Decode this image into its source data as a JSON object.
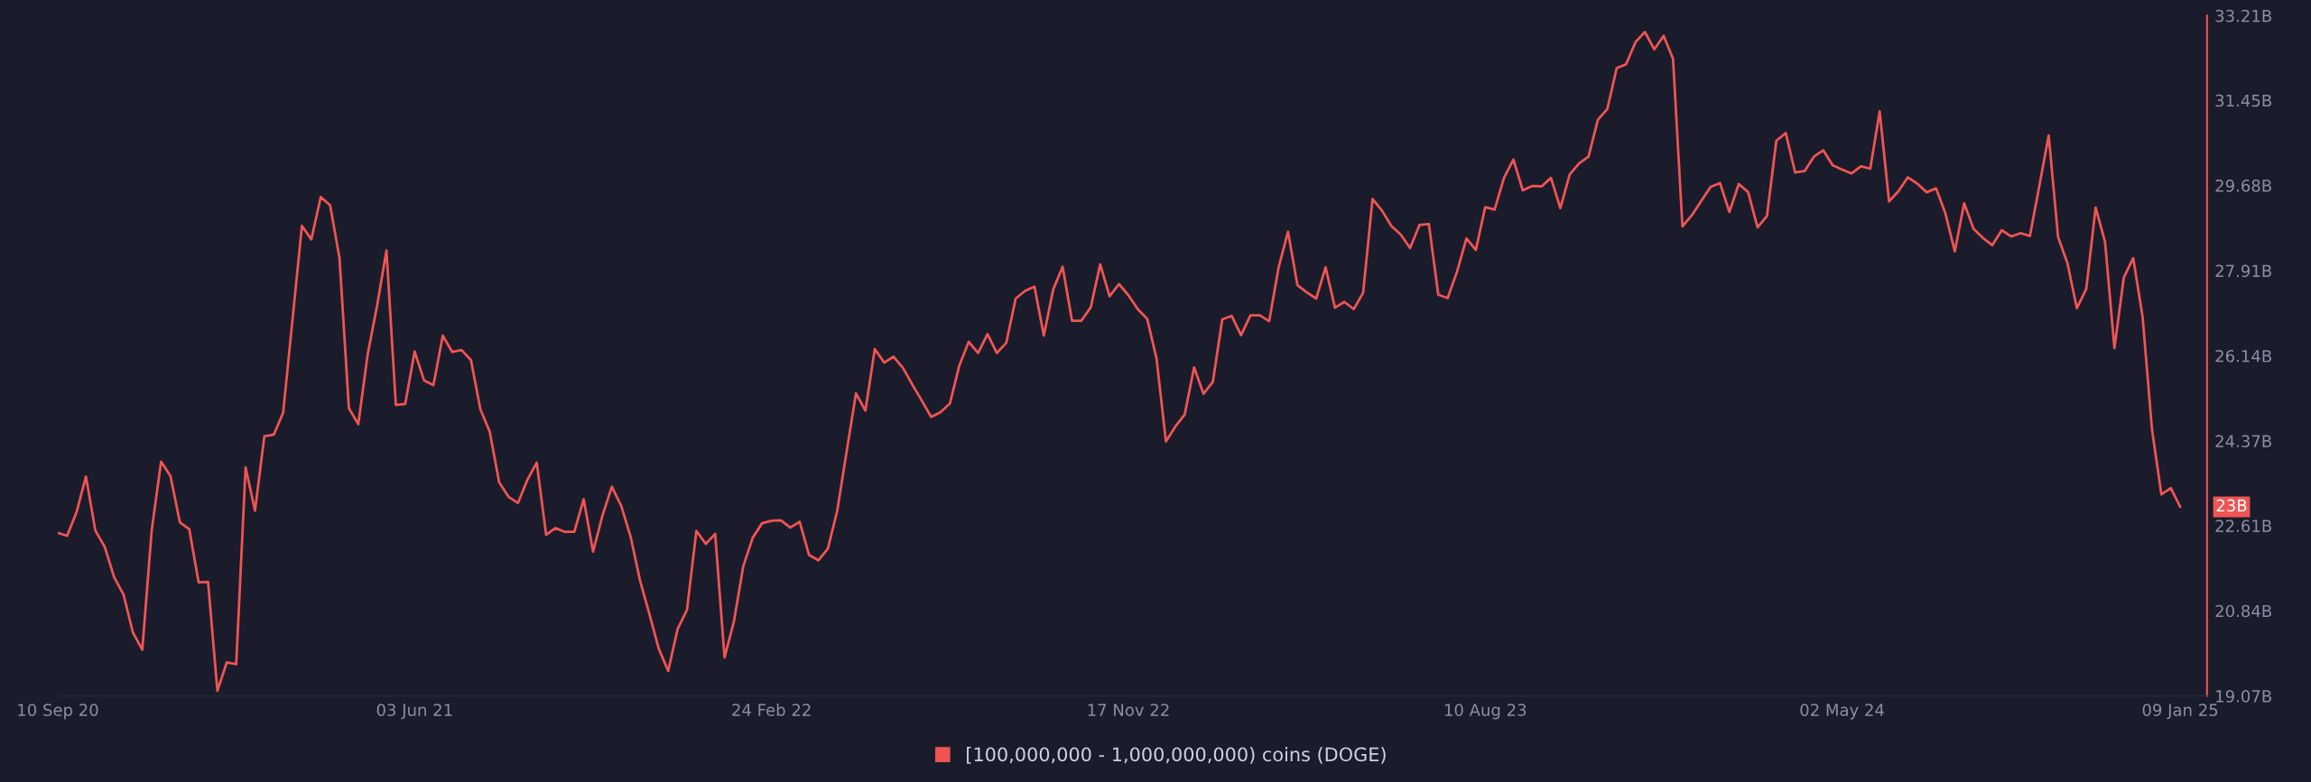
{
  "chart_data": {
    "type": "line",
    "x": [
      "2020-09-10",
      "2020-09-17",
      "2020-09-24",
      "2020-10-01",
      "2020-10-08",
      "2020-10-15",
      "2020-10-22",
      "2020-10-29",
      "2020-11-05",
      "2020-11-12",
      "2020-11-19",
      "2020-11-26",
      "2020-12-03",
      "2020-12-10",
      "2020-12-17",
      "2020-12-24",
      "2020-12-31",
      "2021-01-07",
      "2021-01-14",
      "2021-01-21",
      "2021-01-28",
      "2021-02-04",
      "2021-02-11",
      "2021-02-18",
      "2021-02-25",
      "2021-03-04",
      "2021-03-11",
      "2021-03-18",
      "2021-03-25",
      "2021-04-01",
      "2021-04-08",
      "2021-04-15",
      "2021-04-22",
      "2021-04-29",
      "2021-05-06",
      "2021-05-13",
      "2021-05-20",
      "2021-05-27",
      "2021-06-03",
      "2021-06-10",
      "2021-06-17",
      "2021-06-24",
      "2021-07-01",
      "2021-07-08",
      "2021-07-15",
      "2021-07-22",
      "2021-07-29",
      "2021-08-05",
      "2021-08-12",
      "2021-08-19",
      "2021-08-26",
      "2021-09-02",
      "2021-09-09",
      "2021-09-16",
      "2021-09-23",
      "2021-09-30",
      "2021-10-07",
      "2021-10-14",
      "2021-10-21",
      "2021-10-28",
      "2021-11-04",
      "2021-11-11",
      "2021-11-18",
      "2021-11-25",
      "2021-12-02",
      "2021-12-09",
      "2021-12-16",
      "2021-12-23",
      "2021-12-30",
      "2022-01-06",
      "2022-01-13",
      "2022-01-20",
      "2022-01-27",
      "2022-02-03",
      "2022-02-10",
      "2022-02-17",
      "2022-02-24",
      "2022-03-03",
      "2022-03-10",
      "2022-03-17",
      "2022-03-24",
      "2022-03-31",
      "2022-04-07",
      "2022-04-14",
      "2022-04-21",
      "2022-04-28",
      "2022-05-05",
      "2022-05-12",
      "2022-05-19",
      "2022-05-26",
      "2022-06-02",
      "2022-06-09",
      "2022-06-16",
      "2022-06-23",
      "2022-06-30",
      "2022-07-07",
      "2022-07-14",
      "2022-07-21",
      "2022-07-28",
      "2022-08-04",
      "2022-08-11",
      "2022-08-18",
      "2022-08-25",
      "2022-09-01",
      "2022-09-08",
      "2022-09-15",
      "2022-09-22",
      "2022-09-29",
      "2022-10-06",
      "2022-10-13",
      "2022-10-20",
      "2022-10-27",
      "2022-11-03",
      "2022-11-10",
      "2022-11-17",
      "2022-11-24",
      "2022-12-01",
      "2022-12-08",
      "2022-12-15",
      "2022-12-22",
      "2022-12-29",
      "2023-01-05",
      "2023-01-12",
      "2023-01-19",
      "2023-01-26",
      "2023-02-02",
      "2023-02-09",
      "2023-02-16",
      "2023-02-23",
      "2023-03-02",
      "2023-03-09",
      "2023-03-16",
      "2023-03-23",
      "2023-03-30",
      "2023-04-06",
      "2023-04-13",
      "2023-04-20",
      "2023-04-27",
      "2023-05-04",
      "2023-05-11",
      "2023-05-18",
      "2023-05-25",
      "2023-06-01",
      "2023-06-08",
      "2023-06-15",
      "2023-06-22",
      "2023-06-29",
      "2023-07-06",
      "2023-07-13",
      "2023-07-20",
      "2023-07-27",
      "2023-08-03",
      "2023-08-10",
      "2023-08-17",
      "2023-08-24",
      "2023-08-31",
      "2023-09-07",
      "2023-09-14",
      "2023-09-21",
      "2023-09-28",
      "2023-10-05",
      "2023-10-12",
      "2023-10-19",
      "2023-10-26",
      "2023-11-02",
      "2023-11-09",
      "2023-11-16",
      "2023-11-23",
      "2023-11-30",
      "2023-12-07",
      "2023-12-14",
      "2023-12-21",
      "2023-12-28",
      "2024-01-04",
      "2024-01-11",
      "2024-01-18",
      "2024-01-25",
      "2024-02-01",
      "2024-02-08",
      "2024-02-15",
      "2024-02-22",
      "2024-02-29",
      "2024-03-07",
      "2024-03-14",
      "2024-03-21",
      "2024-03-28",
      "2024-04-04",
      "2024-04-11",
      "2024-04-18",
      "2024-04-25",
      "2024-05-02",
      "2024-05-09",
      "2024-05-16",
      "2024-05-23",
      "2024-05-30",
      "2024-06-06",
      "2024-06-13",
      "2024-06-20",
      "2024-06-27",
      "2024-07-04",
      "2024-07-11",
      "2024-07-18",
      "2024-07-25",
      "2024-08-01",
      "2024-08-08",
      "2024-08-15",
      "2024-08-22",
      "2024-08-29",
      "2024-09-05",
      "2024-09-12",
      "2024-09-19",
      "2024-09-26",
      "2024-10-03",
      "2024-10-10",
      "2024-10-17",
      "2024-10-24",
      "2024-10-31",
      "2024-11-07",
      "2024-11-14",
      "2024-11-21",
      "2024-11-28",
      "2024-12-05",
      "2024-12-12",
      "2024-12-19",
      "2024-12-26",
      "2025-01-02",
      "2025-01-09"
    ],
    "series": [
      {
        "name": "[100,000,000 - 1,000,000,000) coins (DOGE)",
        "color": "#f05454",
        "values": [
          22.46,
          22.4,
          22.89,
          23.63,
          22.51,
          22.17,
          21.54,
          21.18,
          20.39,
          20.03,
          22.51,
          23.94,
          23.64,
          22.68,
          22.54,
          21.43,
          21.44,
          19.18,
          19.77,
          19.73,
          23.82,
          22.92,
          24.47,
          24.5,
          24.96,
          26.9,
          28.84,
          28.56,
          29.44,
          29.27,
          28.17,
          25.05,
          24.72,
          26.17,
          27.18,
          28.33,
          25.12,
          25.14,
          26.23,
          25.63,
          25.53,
          26.56,
          26.22,
          26.26,
          26.05,
          25.03,
          24.56,
          23.51,
          23.21,
          23.08,
          23.56,
          23.92,
          22.42,
          22.56,
          22.48,
          22.48,
          23.16,
          22.07,
          22.82,
          23.42,
          23.02,
          22.38,
          21.47,
          20.77,
          20.05,
          19.59,
          20.46,
          20.86,
          22.5,
          22.23,
          22.44,
          19.87,
          20.62,
          21.77,
          22.36,
          22.66,
          22.71,
          22.72,
          22.57,
          22.69,
          22.0,
          21.89,
          22.13,
          22.92,
          24.15,
          25.36,
          25.0,
          26.28,
          26.0,
          26.12,
          25.89,
          25.54,
          25.21,
          24.87,
          24.97,
          25.15,
          25.94,
          26.43,
          26.2,
          26.59,
          26.2,
          26.41,
          27.33,
          27.49,
          27.58,
          26.56,
          27.52,
          27.99,
          26.87,
          26.87,
          27.15,
          28.04,
          27.38,
          27.63,
          27.4,
          27.11,
          26.91,
          26.08,
          24.36,
          24.67,
          24.92,
          25.9,
          25.35,
          25.6,
          26.9,
          26.97,
          26.57,
          26.98,
          26.98,
          26.86,
          27.98,
          28.72,
          27.61,
          27.46,
          27.33,
          27.98,
          27.14,
          27.26,
          27.11,
          27.45,
          29.4,
          29.16,
          28.84,
          28.66,
          28.38,
          28.86,
          28.88,
          27.41,
          27.34,
          27.89,
          28.58,
          28.34,
          29.23,
          29.18,
          29.84,
          30.22,
          29.58,
          29.67,
          29.66,
          29.84,
          29.21,
          29.91,
          30.14,
          30.28,
          31.05,
          31.27,
          32.12,
          32.2,
          32.66,
          32.87,
          32.51,
          32.79,
          32.31,
          28.83,
          29.06,
          29.36,
          29.65,
          29.73,
          29.13,
          29.71,
          29.54,
          28.81,
          29.05,
          30.61,
          30.77,
          29.95,
          29.98,
          30.28,
          30.41,
          30.1,
          30.01,
          29.93,
          30.08,
          30.03,
          31.22,
          29.35,
          29.56,
          29.85,
          29.72,
          29.54,
          29.62,
          29.1,
          28.31,
          29.31,
          28.78,
          28.59,
          28.44,
          28.75,
          28.62,
          28.69,
          28.63,
          29.67,
          30.72,
          28.61,
          28.06,
          27.13,
          27.53,
          29.22,
          28.51,
          26.3,
          27.77,
          28.17,
          26.95,
          24.61,
          23.26,
          23.39,
          23
        ]
      }
    ],
    "xlim": [
      "2020-09-10",
      "2025-01-29"
    ],
    "xticks": [
      {
        "value": "2020-09-10",
        "label": "10 Sep 20"
      },
      {
        "value": "2021-06-03",
        "label": "03 Jun 21"
      },
      {
        "value": "2022-02-24",
        "label": "24 Feb 22"
      },
      {
        "value": "2022-11-17",
        "label": "17 Nov 22"
      },
      {
        "value": "2023-08-10",
        "label": "10 Aug 23"
      },
      {
        "value": "2024-05-02",
        "label": "02 May 24"
      },
      {
        "value": "2025-01-09",
        "label": "09 Jan 25"
      }
    ],
    "ylim": [
      19.07,
      33.21
    ],
    "yticks": [
      {
        "value": 19.07,
        "label": "19.07B"
      },
      {
        "value": 20.84,
        "label": "20.84B"
      },
      {
        "value": 22.61,
        "label": "22.61B"
      },
      {
        "value": 24.37,
        "label": "24.37B"
      },
      {
        "value": 26.14,
        "label": "26.14B"
      },
      {
        "value": 27.91,
        "label": "27.91B"
      },
      {
        "value": 29.68,
        "label": "29.68B"
      },
      {
        "value": 31.45,
        "label": "31.45B"
      },
      {
        "value": 33.21,
        "label": "33.21B"
      }
    ],
    "annotations": [
      {
        "text": "23B",
        "x": "2025-01-09",
        "y": 23
      }
    ],
    "legend": "bottom",
    "grid": false,
    "marker": "none",
    "line_style": "solid"
  }
}
